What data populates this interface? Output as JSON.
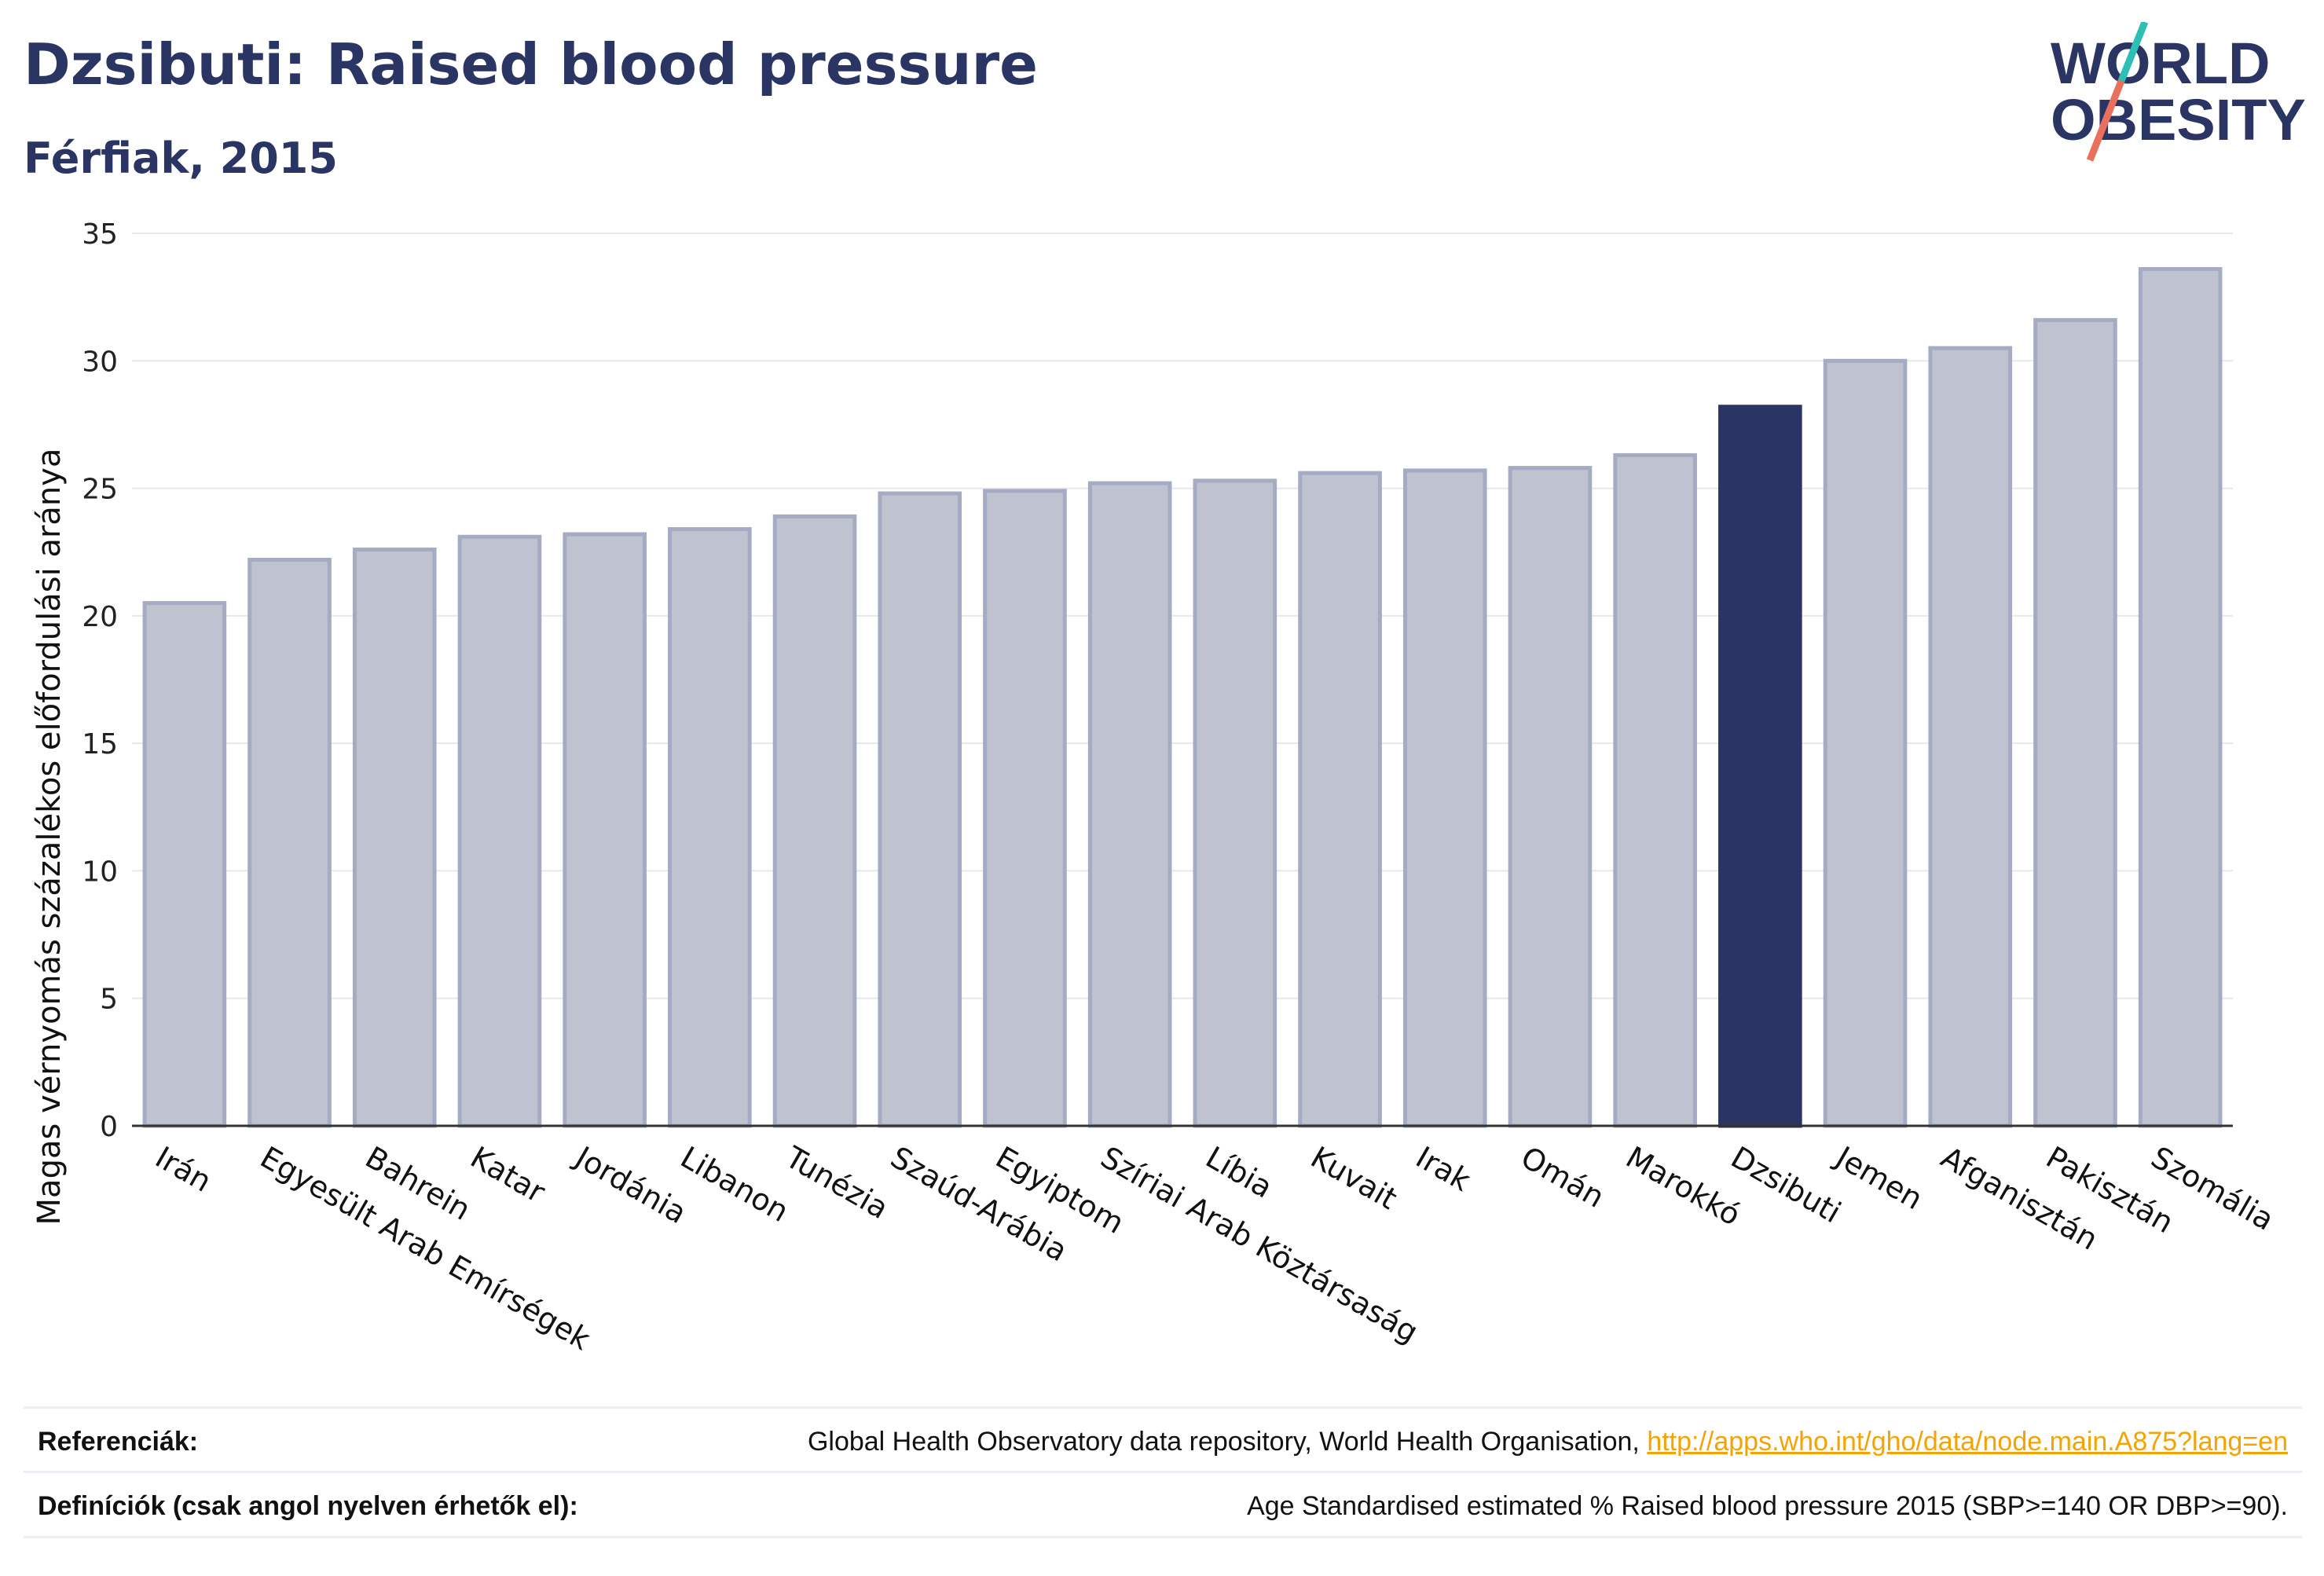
{
  "header": {
    "title": "Dzsibuti: Raised blood pressure",
    "subtitle": "Férfiak, 2015"
  },
  "logo": {
    "line1": "WORLD",
    "line2": "OBESITY",
    "colors": {
      "text": "#2b3563",
      "slash_top": "#2cc0b5",
      "slash_bottom": "#e8705c"
    }
  },
  "chart_data": {
    "type": "bar",
    "title": "Dzsibuti: Raised blood pressure",
    "subtitle": "Férfiak, 2015",
    "xlabel": "",
    "ylabel": "Magas vérnyomás százalékos előfordulási aránya",
    "ylim": [
      0,
      35
    ],
    "yticks": [
      0,
      5,
      10,
      15,
      20,
      25,
      30,
      35
    ],
    "grid": true,
    "highlight": "Dzsibuti",
    "colors": {
      "bar": "#bfc2cf",
      "bar_border": "#a5abc2",
      "highlight": "#2b3563",
      "grid": "#e6e8ee",
      "axis": "#333333"
    },
    "categories": [
      "Irán",
      "Egyesült Arab Emírségek",
      "Bahrein",
      "Katar",
      "Jordánia",
      "Libanon",
      "Tunézia",
      "Szaúd-Arábia",
      "Egyiptom",
      "Szíriai Arab Köztársaság",
      "Líbia",
      "Kuvait",
      "Irak",
      "Omán",
      "Marokkó",
      "Dzsibuti",
      "Jemen",
      "Afganisztán",
      "Pakisztán",
      "Szomália"
    ],
    "values": [
      20.5,
      22.2,
      22.6,
      23.1,
      23.2,
      23.4,
      23.9,
      24.8,
      24.9,
      25.2,
      25.3,
      25.6,
      25.7,
      25.8,
      26.3,
      28.2,
      30.0,
      30.5,
      31.6,
      33.6
    ]
  },
  "footer": {
    "references_label": "Referenciák:",
    "references_text": "Global Health Observatory data repository, World Health Organisation, ",
    "references_link": "http://apps.who.int/gho/data/node.main.A875?lang=en",
    "definitions_label": "Definíciók (csak angol nyelven érhetők el):",
    "definitions_text": "Age Standardised estimated % Raised blood pressure 2015 (SBP>=140 OR DBP>=90)."
  }
}
